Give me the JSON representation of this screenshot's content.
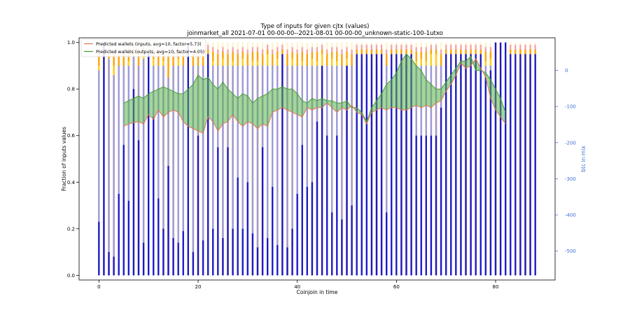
{
  "chart_data": {
    "type": "bar",
    "title": "Type of inputs for given cjtx (values)",
    "subtitle": "joinmarket_all 2021-07-01 00-00-00--2021-08-01 00-00-00_unknown-static-100-1utxo",
    "xlabel": "Coinjoin in time",
    "ylabel": "Fraction of inputs values",
    "y2label": "btc in mix",
    "xlim": [
      -4,
      92
    ],
    "ylim": [
      -0.02,
      1.02
    ],
    "y2lim": [
      -580,
      90
    ],
    "xticks": [
      0,
      20,
      40,
      60,
      80
    ],
    "yticks": [
      0.0,
      0.2,
      0.4,
      0.6,
      0.8,
      1.0
    ],
    "y2ticks": [
      0,
      -100,
      -200,
      -300,
      -400,
      -500
    ],
    "colors": {
      "fresh": "#1a1acc",
      "remix": "#9999e6",
      "yellow": "#ffd21a",
      "orange": "#ffa500",
      "pink": "#f5a5a5",
      "light": "#fff2cc",
      "inputs_line": "#e8734e",
      "inputs_fill": "#ff5a3c",
      "outputs_line": "#4a9a3a",
      "outputs_fill": "#59b34a",
      "btc_line": "#6a86d8",
      "axis2": "#3e6fd6"
    },
    "legend": {
      "placement": "top-left",
      "entries": [
        "Predicted wallets (inputs, avg=10, factor=5.73)",
        "Predicted wallets (outputs, avg=10, factor=4.05)"
      ]
    },
    "x": [
      0,
      1,
      2,
      3,
      4,
      5,
      6,
      7,
      8,
      9,
      10,
      11,
      12,
      13,
      14,
      15,
      16,
      17,
      18,
      19,
      20,
      21,
      22,
      23,
      24,
      25,
      26,
      27,
      28,
      29,
      30,
      31,
      32,
      33,
      34,
      35,
      36,
      37,
      38,
      39,
      40,
      41,
      42,
      43,
      44,
      45,
      46,
      47,
      48,
      49,
      50,
      51,
      52,
      53,
      54,
      55,
      56,
      57,
      58,
      59,
      60,
      61,
      62,
      63,
      64,
      65,
      66,
      67,
      68,
      69,
      70,
      71,
      72,
      73,
      74,
      75,
      76,
      77,
      78,
      79,
      80,
      81,
      82,
      83,
      84,
      85,
      86,
      87,
      88
    ],
    "bar_fresh": [
      0.23,
      1.0,
      0.1,
      0.08,
      0.35,
      0.56,
      0.32,
      0.8,
      0.58,
      0.14,
      0.95,
      0.68,
      0.33,
      0.2,
      0.47,
      0.16,
      0.14,
      0.19,
      1.0,
      0.1,
      0.6,
      0.15,
      0.95,
      0.2,
      0.55,
      0.16,
      0.55,
      0.2,
      0.42,
      0.2,
      0.4,
      0.18,
      0.12,
      0.55,
      0.16,
      0.38,
      0.13,
      0.95,
      0.12,
      0.2,
      0.35,
      0.56,
      0.38,
      0.4,
      0.66,
      0.9,
      0.6,
      0.27,
      0.6,
      0.24,
      0.9,
      0.3,
      0.95,
      0.95,
      0.95,
      0.95,
      0.95,
      0.95,
      0.27,
      0.95,
      0.95,
      0.95,
      0.95,
      0.95,
      0.6,
      0.6,
      0.6,
      0.6,
      0.6,
      0.72,
      0.95,
      0.95,
      0.95,
      0.95,
      0.95,
      0.95,
      0.95,
      0.95,
      0.85,
      0.88,
      1.0,
      1.0,
      1.0,
      0.95,
      0.95,
      0.95,
      0.95,
      0.95,
      0.95
    ],
    "bar_remix": [
      0.88,
      0.9,
      0.93,
      0.86,
      0.9,
      0.9,
      0.9,
      0.94,
      0.9,
      0.93,
      0.9,
      0.9,
      0.9,
      0.9,
      0.85,
      0.9,
      0.9,
      0.9,
      0.9,
      0.9,
      0.9,
      0.9,
      0.9,
      0.9,
      0.9,
      0.9,
      0.9,
      0.9,
      0.9,
      0.9,
      0.9,
      0.9,
      0.9,
      0.9,
      0.9,
      0.9,
      0.9,
      0.9,
      0.9,
      0.9,
      0.9,
      0.9,
      0.9,
      0.9,
      0.9,
      0.9,
      0.9,
      0.9,
      0.9,
      0.9,
      0.9,
      0.9,
      0.9,
      0.9,
      0.9,
      0.9,
      0.9,
      0.9,
      0.9,
      0.9,
      0.9,
      0.9,
      0.9,
      0.9,
      0.9,
      0.9,
      0.9,
      0.9,
      0.9,
      0.9,
      0.9,
      0.9,
      0.9,
      0.9,
      0.9,
      0.9,
      0.9,
      0.9,
      0.9,
      0.9,
      0.9,
      0.9,
      0.9,
      0.9,
      0.9,
      0.9,
      0.9,
      0.9,
      0.9
    ],
    "bar_yellow": [
      0.9,
      0.95,
      0.93,
      0.9,
      0.9,
      0.9,
      0.92,
      0.95,
      0.9,
      0.95,
      0.9,
      0.93,
      0.9,
      0.92,
      0.75,
      0.9,
      0.93,
      0.9,
      0.92,
      0.9,
      0.9,
      0.9,
      0.95,
      0.92,
      0.9,
      0.93,
      0.9,
      0.92,
      0.9,
      0.93,
      0.9,
      0.92,
      0.92,
      0.9,
      0.95,
      0.9,
      0.93,
      0.95,
      0.9,
      0.93,
      0.9,
      0.92,
      0.9,
      0.93,
      0.92,
      0.95,
      0.9,
      0.93,
      0.92,
      0.9,
      0.93,
      0.9,
      0.95,
      0.95,
      0.95,
      0.95,
      0.95,
      0.95,
      0.9,
      0.95,
      0.95,
      0.95,
      0.95,
      0.95,
      0.92,
      0.93,
      0.92,
      0.95,
      0.95,
      0.9,
      0.95,
      0.95,
      0.95,
      0.95,
      0.95,
      0.95,
      0.95,
      0.95,
      0.92,
      0.93,
      1.0,
      1.0,
      1.0,
      0.95,
      0.95,
      0.95,
      0.95,
      0.95,
      0.95
    ],
    "bar_orange": [
      0.95,
      0.97,
      0.96,
      0.95,
      0.95,
      0.95,
      0.96,
      0.97,
      0.95,
      0.97,
      0.95,
      0.96,
      0.95,
      0.96,
      0.94,
      0.95,
      0.96,
      0.95,
      0.96,
      0.95,
      0.95,
      0.95,
      0.97,
      0.96,
      0.95,
      0.96,
      0.95,
      0.96,
      0.95,
      0.96,
      0.95,
      0.96,
      0.96,
      0.95,
      0.97,
      0.95,
      0.96,
      0.97,
      0.95,
      0.96,
      0.95,
      0.96,
      0.95,
      0.96,
      0.96,
      0.97,
      0.95,
      0.96,
      0.96,
      0.95,
      0.96,
      0.95,
      0.97,
      0.97,
      0.97,
      0.97,
      0.97,
      0.97,
      0.95,
      0.97,
      0.97,
      0.97,
      0.97,
      0.97,
      0.96,
      0.96,
      0.96,
      0.97,
      0.97,
      0.95,
      0.97,
      0.97,
      0.97,
      0.97,
      0.97,
      0.97,
      0.97,
      0.97,
      0.96,
      0.96,
      1.0,
      1.0,
      1.0,
      0.97,
      0.97,
      0.97,
      0.97,
      0.97,
      0.97
    ],
    "bar_pink": [
      0.97,
      0.99,
      0.98,
      0.97,
      0.97,
      0.97,
      0.98,
      0.99,
      0.97,
      0.99,
      0.97,
      0.98,
      0.97,
      0.98,
      0.96,
      0.97,
      0.98,
      0.97,
      0.98,
      0.97,
      0.97,
      0.97,
      0.99,
      0.98,
      0.97,
      0.98,
      0.97,
      0.98,
      0.97,
      0.98,
      0.97,
      0.98,
      0.98,
      0.97,
      0.99,
      0.97,
      0.98,
      0.99,
      0.97,
      0.98,
      0.97,
      0.98,
      0.97,
      0.98,
      0.98,
      0.99,
      0.97,
      0.98,
      0.98,
      0.97,
      0.98,
      0.97,
      0.99,
      0.99,
      0.99,
      0.99,
      0.99,
      0.99,
      0.97,
      0.99,
      0.99,
      0.99,
      0.99,
      0.99,
      0.98,
      0.98,
      0.98,
      0.99,
      0.99,
      0.97,
      0.99,
      0.99,
      0.99,
      0.99,
      0.99,
      0.99,
      0.99,
      0.99,
      0.98,
      0.98,
      1.0,
      1.0,
      1.0,
      0.99,
      0.99,
      0.99,
      0.99,
      0.99,
      0.99
    ],
    "inputs_x": [
      5,
      6,
      7,
      8,
      9,
      10,
      11,
      12,
      13,
      14,
      15,
      16,
      17,
      18,
      19,
      20,
      21,
      22,
      23,
      24,
      25,
      26,
      27,
      28,
      29,
      30,
      31,
      32,
      33,
      34,
      35,
      36,
      37,
      38,
      39,
      40,
      41,
      42,
      43,
      44,
      45,
      46,
      47,
      48,
      49,
      50,
      51,
      52,
      53,
      54,
      55,
      56,
      57,
      58,
      59,
      60,
      61,
      62,
      63,
      64,
      65,
      66,
      67,
      68,
      69,
      70,
      71,
      72,
      73,
      74,
      75,
      76,
      77,
      78,
      79,
      80,
      81,
      82
    ],
    "inputs_low": [
      0.64,
      0.65,
      0.655,
      0.66,
      0.65,
      0.69,
      0.67,
      0.71,
      0.68,
      0.7,
      0.71,
      0.7,
      0.66,
      0.64,
      0.63,
      0.62,
      0.61,
      0.68,
      0.66,
      0.62,
      0.65,
      0.66,
      0.69,
      0.66,
      0.64,
      0.66,
      0.65,
      0.63,
      0.65,
      0.64,
      0.7,
      0.71,
      0.72,
      0.71,
      0.7,
      0.69,
      0.68,
      0.72,
      0.71,
      0.72,
      0.72,
      0.74,
      0.72,
      0.7,
      0.72,
      0.71,
      0.73,
      0.7,
      0.69,
      0.65,
      0.7,
      0.71,
      0.72,
      0.71,
      0.72,
      0.72,
      0.71,
      0.71,
      0.72,
      0.73,
      0.72,
      0.73,
      0.72,
      0.74,
      0.75,
      0.79,
      0.82,
      0.86,
      0.91,
      0.89,
      0.9,
      0.93,
      0.89,
      0.85,
      0.76,
      0.71,
      0.68,
      0.65
    ],
    "inputs_high": [
      0.74,
      0.75,
      0.76,
      0.77,
      0.76,
      0.78,
      0.79,
      0.8,
      0.81,
      0.8,
      0.79,
      0.78,
      0.78,
      0.8,
      0.82,
      0.86,
      0.84,
      0.85,
      0.82,
      0.8,
      0.83,
      0.8,
      0.78,
      0.76,
      0.78,
      0.77,
      0.74,
      0.76,
      0.77,
      0.78,
      0.8,
      0.8,
      0.81,
      0.8,
      0.8,
      0.78,
      0.75,
      0.74,
      0.76,
      0.75,
      0.76,
      0.75,
      0.75,
      0.74,
      0.74,
      0.75,
      0.72,
      0.72,
      0.7,
      0.66,
      0.72,
      0.75,
      0.78,
      0.82,
      0.84,
      0.87,
      0.92,
      0.95,
      0.93,
      0.9,
      0.88,
      0.84,
      0.82,
      0.8,
      0.8,
      0.83,
      0.86,
      0.89,
      0.92,
      0.92,
      0.94,
      0.88,
      0.88,
      0.87,
      0.84,
      0.8,
      0.76,
      0.7
    ]
  }
}
